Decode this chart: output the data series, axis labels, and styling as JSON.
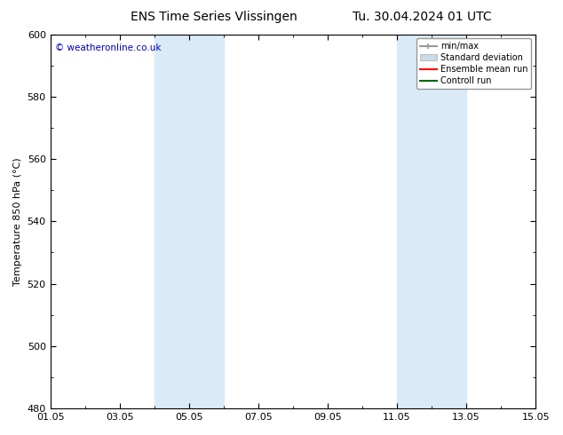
{
  "title_left": "ENS Time Series Vlissingen",
  "title_right": "Tu. 30.04.2024 01 UTC",
  "ylabel": "Temperature 850 hPa (°C)",
  "ylim": [
    480,
    600
  ],
  "yticks": [
    480,
    500,
    520,
    540,
    560,
    580,
    600
  ],
  "xtick_labels": [
    "01.05",
    "03.05",
    "05.05",
    "07.05",
    "09.05",
    "11.05",
    "13.05",
    "15.05"
  ],
  "xtick_positions": [
    0,
    2,
    4,
    6,
    8,
    10,
    12,
    14
  ],
  "xlim": [
    0,
    14
  ],
  "shaded_bands": [
    {
      "x_start": 3.0,
      "x_end": 5.0
    },
    {
      "x_start": 10.0,
      "x_end": 12.0
    }
  ],
  "shaded_color": "#daeaf7",
  "watermark_text": "© weatheronline.co.uk",
  "watermark_color": "#0000bb",
  "legend_items": [
    {
      "label": "min/max",
      "color": "#999999",
      "lw": 1.5,
      "style": "solid"
    },
    {
      "label": "Standard deviation",
      "color": "#c8dce8",
      "lw": 8,
      "style": "solid"
    },
    {
      "label": "Ensemble mean run",
      "color": "#ff0000",
      "lw": 1.5,
      "style": "solid"
    },
    {
      "label": "Controll run",
      "color": "#006600",
      "lw": 1.5,
      "style": "solid"
    }
  ],
  "bg_color": "#ffffff",
  "spine_color": "#000000",
  "tick_color": "#000000"
}
